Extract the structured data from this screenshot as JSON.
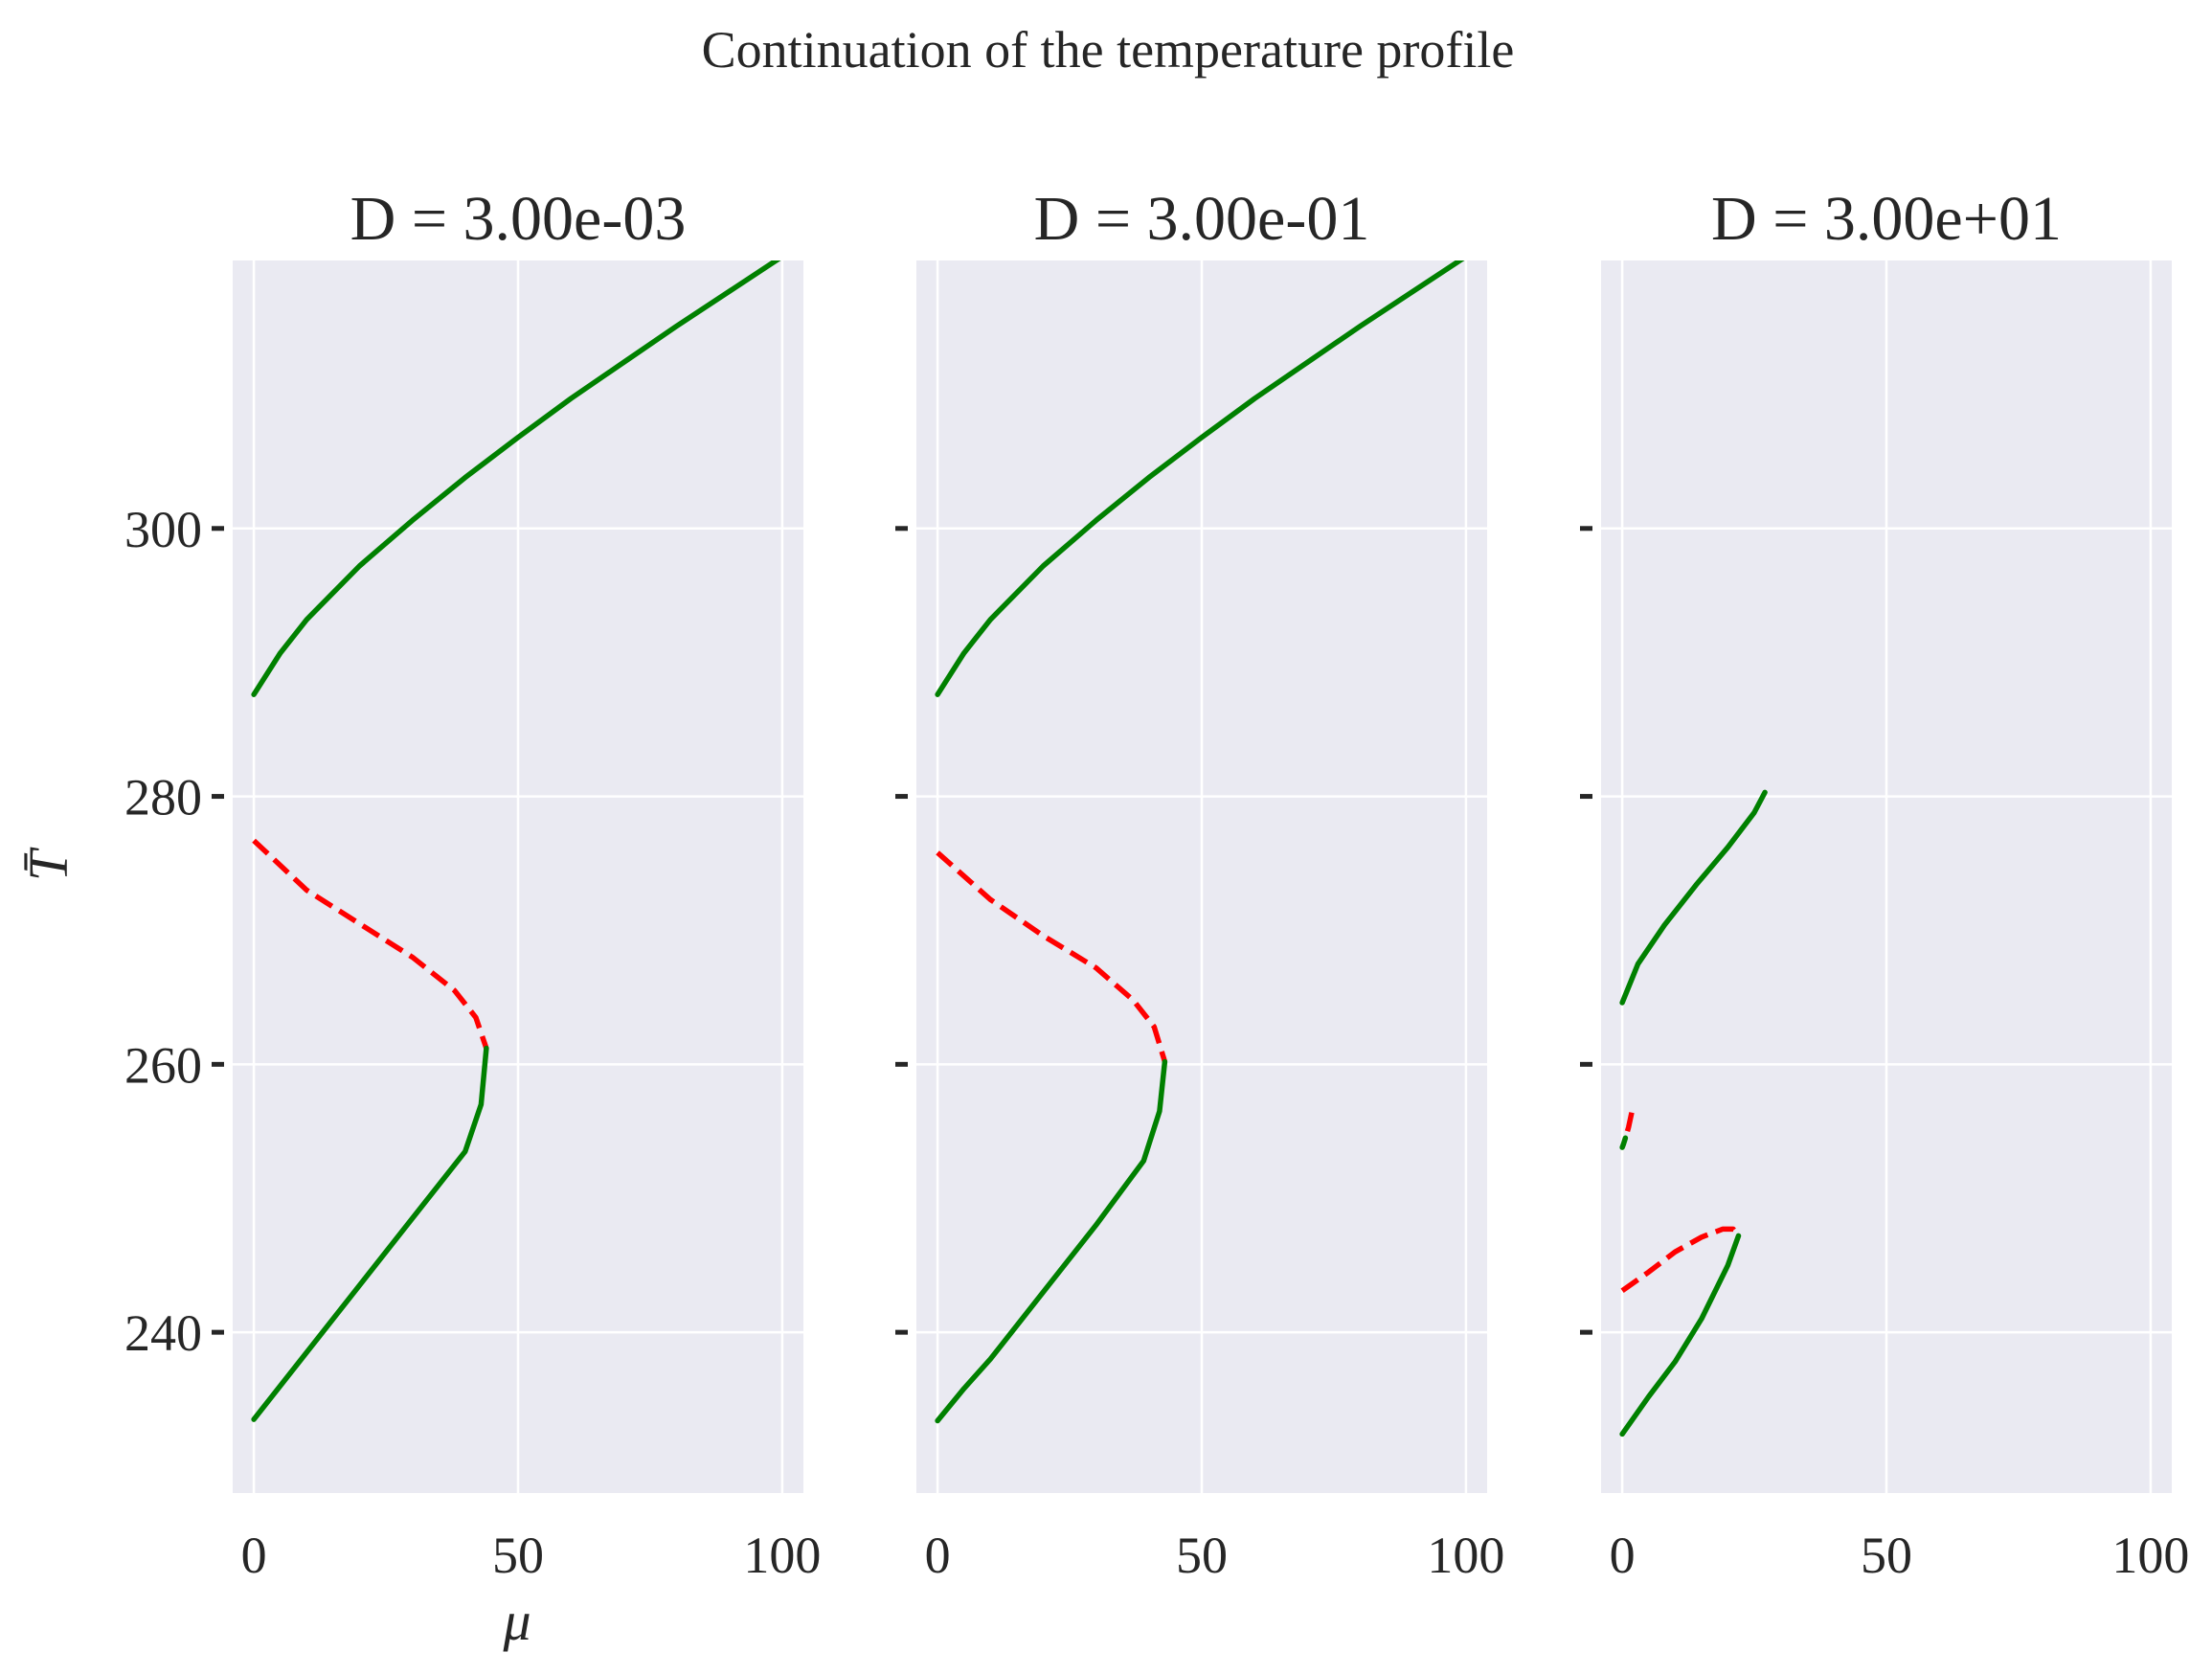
{
  "figure": {
    "suptitle": "Continuation of the temperature profile",
    "xlabel": "μ",
    "ylabel": "T̄"
  },
  "colors": {
    "background": "#ffffff",
    "axes_face": "#eaeaf2",
    "grid": "#ffffff",
    "stable": "#008000",
    "unstable": "#ff0000",
    "text": "#262626"
  },
  "chart_data": [
    {
      "type": "line",
      "title": "D = 3.00e-03",
      "xlabel": "μ",
      "ylabel": "T̄",
      "xlim": [
        -4,
        104
      ],
      "ylim": [
        228,
        320
      ],
      "xticks": [
        0,
        50,
        100
      ],
      "xtick_labels": [
        "0",
        "50",
        "100"
      ],
      "yticks": [
        240,
        260,
        280,
        300
      ],
      "ytick_labels": [
        "240",
        "260",
        "280",
        "300"
      ],
      "grid": true,
      "series": [
        {
          "style": "stable",
          "x": [
            0,
            5,
            10,
            20,
            30,
            40,
            50,
            60,
            70,
            80,
            90,
            100
          ],
          "y": [
            287.6,
            290.7,
            293.2,
            297.2,
            300.6,
            303.8,
            306.8,
            309.7,
            312.4,
            315.1,
            317.7,
            320.3
          ]
        },
        {
          "style": "unstable",
          "x": [
            0,
            10,
            20,
            30,
            38,
            42,
            44
          ],
          "y": [
            276.7,
            273.0,
            270.5,
            268.0,
            265.5,
            263.5,
            261.2
          ]
        },
        {
          "style": "stable",
          "x": [
            44,
            43,
            40,
            30,
            20,
            10,
            5,
            0
          ],
          "y": [
            261.2,
            257.0,
            253.5,
            248.5,
            243.5,
            238.5,
            236.0,
            233.5
          ]
        }
      ]
    },
    {
      "type": "line",
      "title": "D = 3.00e-01",
      "xlabel": "",
      "ylabel": "",
      "xlim": [
        -4,
        104
      ],
      "ylim": [
        228,
        320
      ],
      "xticks": [
        0,
        50,
        100
      ],
      "xtick_labels": [
        "0",
        "50",
        "100"
      ],
      "yticks": [
        240,
        260,
        280,
        300
      ],
      "ytick_labels": [],
      "grid": true,
      "series": [
        {
          "style": "stable",
          "x": [
            0,
            5,
            10,
            20,
            30,
            40,
            50,
            60,
            70,
            80,
            90,
            100
          ],
          "y": [
            287.6,
            290.7,
            293.2,
            297.2,
            300.6,
            303.8,
            306.8,
            309.7,
            312.4,
            315.1,
            317.7,
            320.3
          ]
        },
        {
          "style": "unstable",
          "x": [
            0,
            10,
            20,
            30,
            37,
            41,
            43
          ],
          "y": [
            275.8,
            272.3,
            269.6,
            267.2,
            264.8,
            262.8,
            260.2
          ]
        },
        {
          "style": "stable",
          "x": [
            43,
            42,
            39,
            30,
            20,
            10,
            5,
            0
          ],
          "y": [
            260.2,
            256.5,
            252.8,
            248.0,
            243.0,
            238.0,
            235.8,
            233.4
          ]
        }
      ]
    },
    {
      "type": "line",
      "title": "D = 3.00e+01",
      "xlabel": "",
      "ylabel": "",
      "xlim": [
        -4,
        104
      ],
      "ylim": [
        228,
        320
      ],
      "xticks": [
        0,
        50,
        100
      ],
      "xtick_labels": [
        "0",
        "50",
        "100"
      ],
      "yticks": [
        240,
        260,
        280,
        300
      ],
      "ytick_labels": [],
      "grid": true,
      "series": [
        {
          "style": "stable",
          "x": [
            0,
            3,
            8,
            14,
            20,
            25,
            27
          ],
          "y": [
            264.6,
            267.5,
            270.4,
            273.4,
            276.2,
            278.8,
            280.3
          ]
        },
        {
          "style": "unstable",
          "x": [
            1.8,
            1.2,
            0.6
          ],
          "y": [
            256.4,
            255.3,
            254.5
          ]
        },
        {
          "style": "stable",
          "x": [
            0.6,
            0.2,
            0
          ],
          "y": [
            254.5,
            254.0,
            253.8
          ]
        },
        {
          "style": "unstable",
          "x": [
            0,
            5,
            10,
            15,
            19,
            21,
            22
          ],
          "y": [
            243.1,
            244.5,
            246.0,
            247.1,
            247.7,
            247.7,
            247.2
          ]
        },
        {
          "style": "stable",
          "x": [
            22,
            20,
            15,
            10,
            5,
            0
          ],
          "y": [
            247.2,
            245.0,
            241.0,
            237.8,
            235.2,
            232.4
          ]
        }
      ]
    }
  ]
}
